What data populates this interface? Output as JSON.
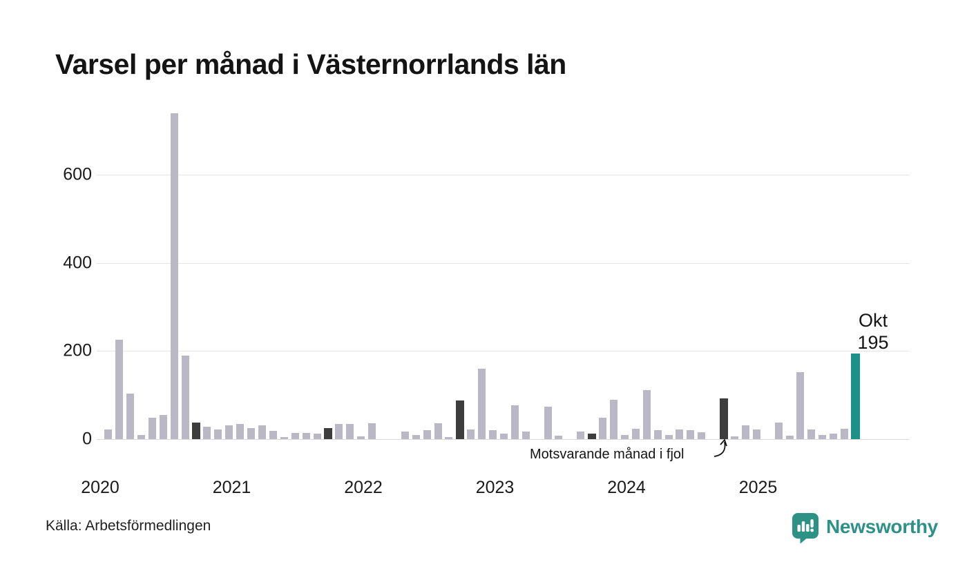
{
  "header": {
    "title": "Varsel per månad i Västernorrlands län"
  },
  "current_bar_label": {
    "month": "Okt",
    "value": "195"
  },
  "annotation": {
    "compare_text": "Motsvarande månad i fjol"
  },
  "footer": {
    "source": "Källa: Arbetsförmedlingen",
    "brand": "Newsworthy"
  },
  "colors": {
    "bar": "#bab8c4",
    "compare_bar": "#3d3d3d",
    "current_bar": "#1a9288",
    "gridline": "#e4e4e7",
    "brand_teal": "#2d9186",
    "text": "#141414"
  },
  "chart_data": {
    "type": "bar",
    "title": "Varsel per månad i Västernorrlands län",
    "xlabel": "",
    "ylabel": "",
    "ylim": [
      0,
      740
    ],
    "yticks": [
      0,
      200,
      400,
      600
    ],
    "grid": true,
    "legend_position": "none",
    "x_year_labels": [
      "2020",
      "2021",
      "2022",
      "2023",
      "2024",
      "2025"
    ],
    "categories": [
      "2020-01",
      "2020-02",
      "2020-03",
      "2020-04",
      "2020-05",
      "2020-06",
      "2020-07",
      "2020-08",
      "2020-09",
      "2020-10",
      "2020-11",
      "2020-12",
      "2021-01",
      "2021-02",
      "2021-03",
      "2021-04",
      "2021-05",
      "2021-06",
      "2021-07",
      "2021-08",
      "2021-09",
      "2021-10",
      "2021-11",
      "2021-12",
      "2022-01",
      "2022-02",
      "2022-03",
      "2022-04",
      "2022-05",
      "2022-06",
      "2022-07",
      "2022-08",
      "2022-09",
      "2022-10",
      "2022-11",
      "2022-12",
      "2023-01",
      "2023-02",
      "2023-03",
      "2023-04",
      "2023-05",
      "2023-06",
      "2023-07",
      "2023-08",
      "2023-09",
      "2023-10",
      "2023-11",
      "2023-12",
      "2024-01",
      "2024-02",
      "2024-03",
      "2024-04",
      "2024-05",
      "2024-06",
      "2024-07",
      "2024-08",
      "2024-09",
      "2024-10",
      "2024-11",
      "2024-12",
      "2025-01",
      "2025-02",
      "2025-03",
      "2025-04",
      "2025-05",
      "2025-06",
      "2025-07",
      "2025-08",
      "2025-09",
      "2025-10"
    ],
    "values": [
      0,
      22,
      225,
      104,
      10,
      49,
      55,
      740,
      190,
      37,
      28,
      22,
      32,
      34,
      25,
      32,
      19,
      4,
      14,
      14,
      13,
      25,
      35,
      35,
      6,
      36,
      0,
      0,
      18,
      9,
      21,
      36,
      5,
      87,
      22,
      160,
      21,
      12,
      77,
      17,
      0,
      74,
      8,
      0,
      17,
      13,
      49,
      90,
      9,
      24,
      112,
      20,
      9,
      22,
      20,
      15,
      0,
      92,
      7,
      31,
      22,
      0,
      38,
      8,
      152,
      22,
      9,
      12,
      23,
      195
    ],
    "compare_month_indices": [
      9,
      21,
      33,
      45,
      57
    ],
    "current_index": 69,
    "current_point_label": "Okt 195",
    "annotation_text": "Motsvarande månad i fjol"
  }
}
